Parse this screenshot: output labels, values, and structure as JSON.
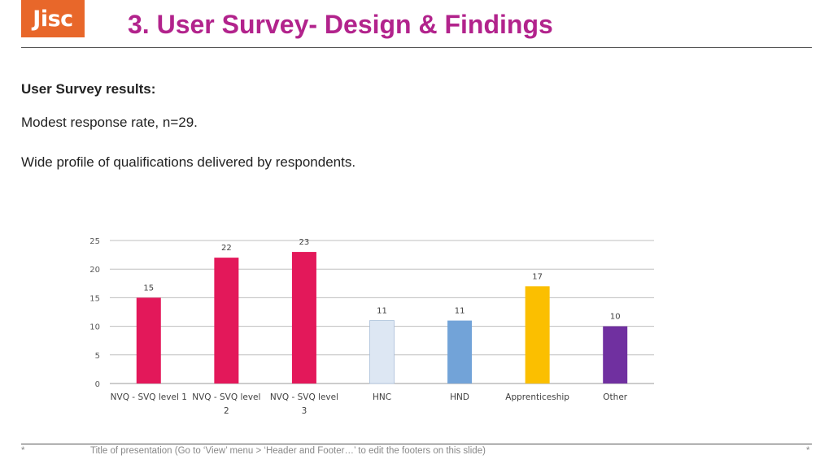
{
  "logo": {
    "text": "Jisc",
    "color": "#e8672a"
  },
  "slide": {
    "title": "3. User Survey- Design & Findings",
    "subheading": "User Survey results:",
    "paragraph1": "Modest response rate, n=29.",
    "paragraph2": "Wide profile of qualifications delivered by respondents."
  },
  "footer": {
    "left_marker": "*",
    "text": "Title of presentation (Go to ‘View’ menu > ‘Header and Footer…’ to edit the footers on this slide)",
    "right_marker": "*"
  },
  "chart_data": {
    "type": "bar",
    "categories": [
      [
        "NVQ - SVQ level 1"
      ],
      [
        "NVQ - SVQ level",
        "2"
      ],
      [
        "NVQ - SVQ level",
        "3"
      ],
      [
        "HNC"
      ],
      [
        "HND"
      ],
      [
        "Apprenticeship"
      ],
      [
        "Other"
      ]
    ],
    "values": [
      15,
      22,
      23,
      11,
      11,
      17,
      10
    ],
    "colors": [
      "#e3185a",
      "#e3185a",
      "#e3185a",
      "#dde7f3",
      "#72a3d8",
      "#fbbf00",
      "#7030a0"
    ],
    "yticks": [
      0,
      5,
      10,
      15,
      20,
      25
    ],
    "ylim": [
      0,
      25
    ],
    "grid": true,
    "data_labels": true
  }
}
